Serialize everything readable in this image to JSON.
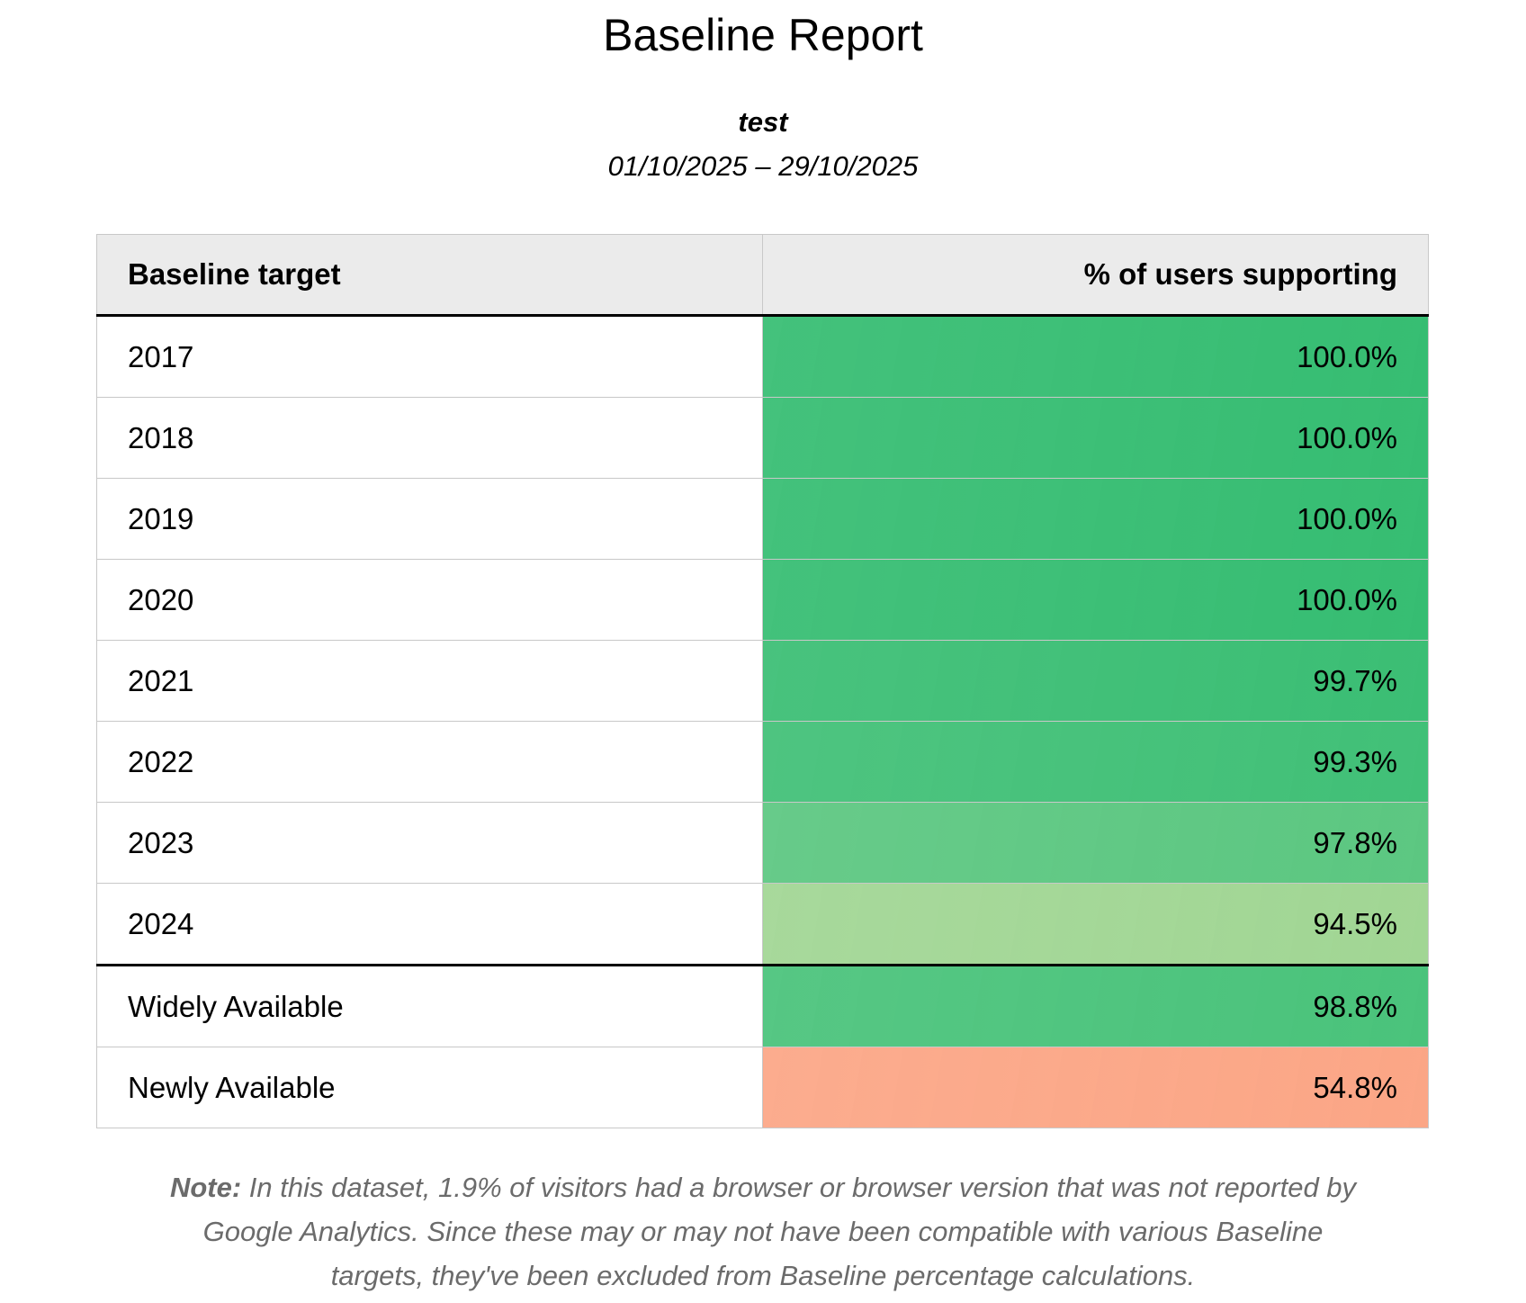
{
  "report": {
    "title": "Baseline Report",
    "site_name": "test",
    "date_range": "01/10/2025 – 29/10/2025"
  },
  "table": {
    "headers": [
      "Baseline target",
      "% of users supporting"
    ],
    "rows": [
      {
        "target": "2017",
        "percent": "100.0%",
        "color": "#36bd72"
      },
      {
        "target": "2018",
        "percent": "100.0%",
        "color": "#36bd72"
      },
      {
        "target": "2019",
        "percent": "100.0%",
        "color": "#36bd72"
      },
      {
        "target": "2020",
        "percent": "100.0%",
        "color": "#36bd72"
      },
      {
        "target": "2021",
        "percent": "99.7%",
        "color": "#3bbe74"
      },
      {
        "target": "2022",
        "percent": "99.3%",
        "color": "#41c077"
      },
      {
        "target": "2023",
        "percent": "97.8%",
        "color": "#5cc781"
      },
      {
        "target": "2024",
        "percent": "94.5%",
        "color": "#a1d694"
      }
    ],
    "summary_rows": [
      {
        "target": "Widely Available",
        "percent": "98.8%",
        "color": "#4ac37b"
      },
      {
        "target": "Newly Available",
        "percent": "54.8%",
        "color": "#fba686"
      }
    ]
  },
  "note": {
    "label": "Note:",
    "text": "In this dataset, 1.9% of visitors had a browser or browser version that was not reported by Google Analytics. Since these may or may not have been compatible with various Baseline targets, they've been excluded from Baseline percentage calculations."
  }
}
